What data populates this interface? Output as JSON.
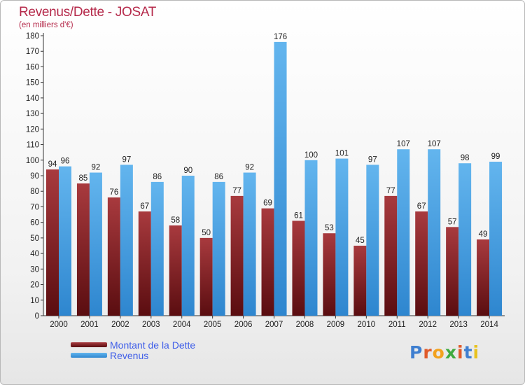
{
  "header": {
    "title": "Revenus/Dette - JOSAT",
    "subtitle": "(en milliers d'€)"
  },
  "colors": {
    "dette": "#7a1a1e",
    "revenus": "#4fa6e6",
    "title": "#b5294a",
    "legend_text": "#3f5ee8"
  },
  "logo": {
    "text": "Proxiti",
    "letter_colors": [
      "#3f7fd0",
      "#e05a2a",
      "#f2a21e",
      "#3faa3f",
      "#e05a2a",
      "#3f7fd0",
      "#e8c21e"
    ]
  },
  "chart_data": {
    "type": "bar",
    "categories": [
      "2000",
      "2001",
      "2002",
      "2003",
      "2004",
      "2005",
      "2006",
      "2007",
      "2008",
      "2009",
      "2010",
      "2011",
      "2012",
      "2013",
      "2014"
    ],
    "series": [
      {
        "name": "Montant de la Dette",
        "values": [
          94,
          85,
          76,
          67,
          58,
          50,
          77,
          69,
          61,
          53,
          45,
          77,
          67,
          57,
          49
        ]
      },
      {
        "name": "Revenus",
        "values": [
          96,
          92,
          97,
          86,
          90,
          86,
          92,
          176,
          100,
          101,
          97,
          107,
          107,
          98,
          99
        ]
      }
    ],
    "title": "Revenus/Dette - JOSAT",
    "ylabel": "(en milliers d'€)",
    "xlabel": "",
    "ylim": [
      0,
      180
    ],
    "ytick_step": 10,
    "grid": false,
    "legend": "bottom-left"
  }
}
